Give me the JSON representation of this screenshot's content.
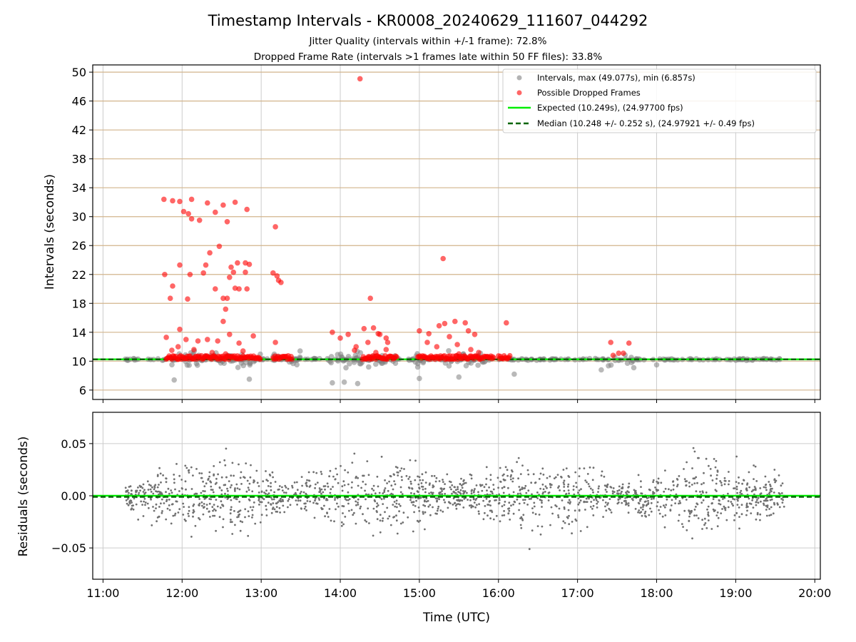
{
  "chart_data": [
    {
      "type": "scatter",
      "title": "Timestamp Intervals - KR0008_20240629_111607_044292",
      "subtitles": [
        "Jitter Quality (intervals within +/-1 frame): 72.8%",
        "Dropped Frame Rate (intervals >1 frames late within 50 FF files): 33.8%"
      ],
      "xlabel": "",
      "ylabel": "Intervals (seconds)",
      "xlim": [
        10.87,
        20.07
      ],
      "ylim": [
        4.7,
        51.0
      ],
      "yticks": [
        6,
        10,
        14,
        18,
        22,
        26,
        30,
        34,
        38,
        42,
        46,
        50
      ],
      "grid": true,
      "legend_position": "top-right",
      "legend": [
        "Intervals, max (49.077s), min (6.857s)",
        "Possible Dropped Frames",
        "Expected (10.249s), (24.97700 fps)",
        "Median (10.248 +/- 0.252 s), (24.97921 +/- 0.49 fps)"
      ],
      "expected": 10.249,
      "median": 10.248,
      "colors": {
        "intervals": "#808080",
        "dropped": "#ff0000",
        "expected": "#00ee00",
        "median": "#006400",
        "hgrid": "#d2b48c"
      },
      "series": [
        {
          "name": "Possible Dropped Frames",
          "points": [
            [
              11.77,
              32.4
            ],
            [
              11.88,
              32.2
            ],
            [
              11.97,
              32.1
            ],
            [
              12.02,
              30.7
            ],
            [
              12.12,
              32.4
            ],
            [
              12.08,
              30.4
            ],
            [
              12.22,
              29.5
            ],
            [
              12.12,
              29.7
            ],
            [
              12.32,
              31.9
            ],
            [
              12.42,
              30.6
            ],
            [
              12.52,
              31.6
            ],
            [
              12.67,
              32.0
            ],
            [
              12.82,
              31.0
            ],
            [
              12.57,
              29.3
            ],
            [
              13.18,
              28.6
            ],
            [
              11.78,
              22.0
            ],
            [
              11.88,
              20.4
            ],
            [
              11.97,
              23.3
            ],
            [
              12.1,
              22.0
            ],
            [
              11.85,
              18.7
            ],
            [
              12.07,
              18.6
            ],
            [
              12.3,
              23.3
            ],
            [
              12.35,
              25.0
            ],
            [
              12.47,
              25.9
            ],
            [
              12.27,
              22.2
            ],
            [
              12.42,
              20.0
            ],
            [
              12.52,
              18.7
            ],
            [
              12.6,
              21.6
            ],
            [
              12.62,
              23.0
            ],
            [
              12.7,
              23.6
            ],
            [
              12.8,
              23.6
            ],
            [
              12.65,
              22.3
            ],
            [
              12.8,
              22.3
            ],
            [
              12.85,
              23.4
            ],
            [
              12.72,
              20.0
            ],
            [
              12.67,
              20.1
            ],
            [
              12.82,
              20.0
            ],
            [
              12.57,
              18.7
            ],
            [
              12.55,
              17.2
            ],
            [
              12.52,
              15.5
            ],
            [
              13.15,
              22.2
            ],
            [
              13.2,
              21.8
            ],
            [
              13.22,
              21.2
            ],
            [
              13.25,
              20.9
            ],
            [
              11.97,
              14.4
            ],
            [
              13.18,
              12.6
            ],
            [
              14.38,
              18.7
            ],
            [
              15.3,
              24.2
            ],
            [
              16.1,
              15.3
            ],
            [
              11.8,
              13.3
            ],
            [
              11.95,
              12.0
            ],
            [
              12.05,
              13.0
            ],
            [
              12.2,
              12.8
            ],
            [
              12.32,
              13.0
            ],
            [
              12.45,
              12.8
            ],
            [
              12.6,
              13.7
            ],
            [
              12.72,
              12.5
            ],
            [
              12.9,
              13.5
            ],
            [
              11.87,
              11.5
            ],
            [
              12.15,
              11.6
            ],
            [
              12.38,
              11.2
            ],
            [
              12.55,
              11.0
            ],
            [
              12.77,
              11.4
            ],
            [
              13.9,
              14.0
            ],
            [
              14.0,
              13.2
            ],
            [
              14.1,
              13.7
            ],
            [
              14.2,
              12.0
            ],
            [
              14.3,
              14.5
            ],
            [
              14.42,
              14.6
            ],
            [
              14.5,
              13.7
            ],
            [
              14.58,
              13.2
            ],
            [
              14.35,
              12.6
            ],
            [
              14.6,
              12.6
            ],
            [
              14.48,
              13.8
            ],
            [
              14.18,
              11.5
            ],
            [
              14.45,
              11.2
            ],
            [
              14.58,
              11.6
            ],
            [
              15.0,
              14.2
            ],
            [
              15.12,
              13.8
            ],
            [
              15.25,
              14.9
            ],
            [
              15.32,
              15.2
            ],
            [
              15.45,
              15.5
            ],
            [
              15.58,
              15.3
            ],
            [
              15.62,
              14.2
            ],
            [
              15.7,
              13.7
            ],
            [
              15.38,
              13.4
            ],
            [
              15.1,
              12.6
            ],
            [
              15.22,
              12.0
            ],
            [
              15.48,
              12.3
            ],
            [
              15.65,
              11.6
            ],
            [
              15.75,
              11.2
            ],
            [
              15.5,
              11.0
            ],
            [
              17.42,
              12.6
            ],
            [
              17.65,
              12.5
            ],
            [
              17.45,
              10.8
            ],
            [
              17.52,
              11.1
            ],
            [
              17.58,
              11.1
            ]
          ]
        }
      ]
    },
    {
      "type": "scatter",
      "xlabel": "Time (UTC)",
      "ylabel": "Residuals (seconds)",
      "xlim": [
        10.87,
        20.07
      ],
      "ylim": [
        -0.08,
        0.08
      ],
      "yticks": [
        -0.05,
        0.0,
        0.05
      ],
      "ytick_labels": [
        "−0.05",
        "0.00",
        "0.05"
      ],
      "xticks": [
        11,
        12,
        13,
        14,
        15,
        16,
        17,
        18,
        19,
        20
      ],
      "xtick_labels": [
        "11:00",
        "12:00",
        "13:00",
        "14:00",
        "15:00",
        "16:00",
        "17:00",
        "18:00",
        "19:00",
        "20:00"
      ],
      "expected": 0.0,
      "median": -0.001,
      "grid": true,
      "colors": {
        "points": "#707070",
        "expected": "#00ee00",
        "median": "#006400",
        "grid": "#cccccc"
      }
    }
  ]
}
